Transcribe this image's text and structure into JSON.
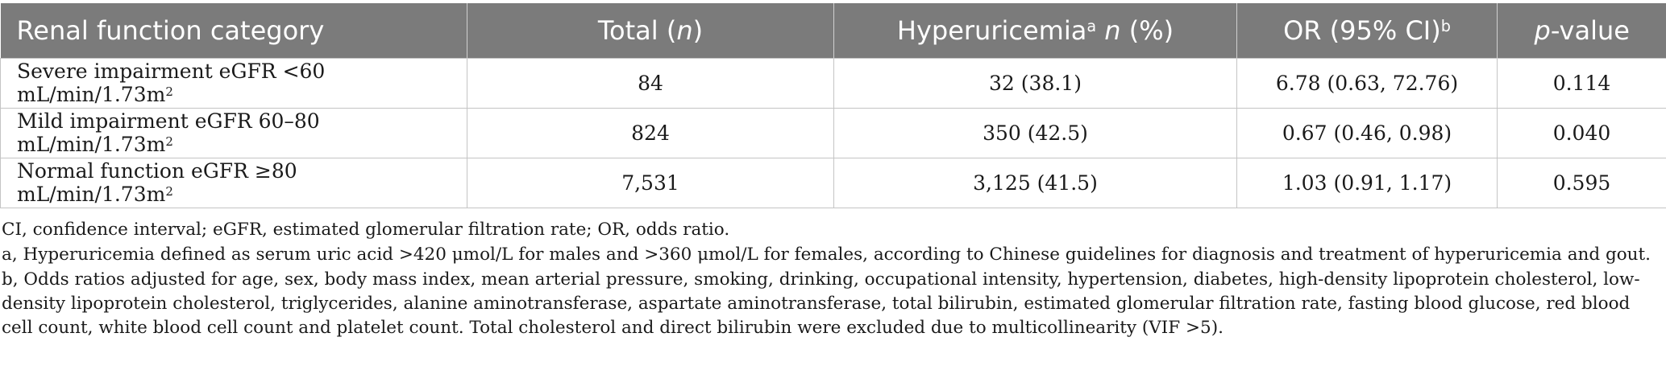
{
  "table": {
    "headers": {
      "category": "Renal function category",
      "total": "Total (",
      "total_n": "n",
      "total_end": ")",
      "hyper": "Hyperuricemia",
      "hyper_sup": "a",
      "hyper_n": "n",
      "hyper_pct": " (%)",
      "or": "OR (95% CI)",
      "or_sup": "b",
      "p_italic": "p",
      "p_rest": "-value"
    },
    "rows": [
      {
        "category": "Severe impairment eGFR <60 mL/min/1.73m",
        "sup": "2",
        "total": "84",
        "hyper": "32 (38.1)",
        "or": "6.78 (0.63, 72.76)",
        "p": "0.114"
      },
      {
        "category": "Mild impairment eGFR 60–80 mL/min/1.73m",
        "sup": "2",
        "total": "824",
        "hyper": "350 (42.5)",
        "or": "0.67 (0.46, 0.98)",
        "p": "0.040"
      },
      {
        "category": "Normal function eGFR ≥80 mL/min/1.73m",
        "sup": "2",
        "total": "7,531",
        "hyper": "3,125 (41.5)",
        "or": "1.03 (0.91, 1.17)",
        "p": "0.595"
      }
    ]
  },
  "footnotes": {
    "abbrev": "CI, confidence interval; eGFR, estimated glomerular filtration rate; OR, odds ratio.",
    "a": "a, Hyperuricemia defined as serum uric acid >420 μmol/L for males and >360 μmol/L for females, according to Chinese guidelines for diagnosis and treatment of hyperuricemia and gout.",
    "b": "b, Odds ratios adjusted for age, sex, body mass index, mean arterial pressure, smoking, drinking, occupational intensity, hypertension, diabetes, high-density lipoprotein cholesterol, low-density lipoprotein cholesterol, triglycerides, alanine aminotransferase, aspartate aminotransferase, total bilirubin, estimated glomerular filtration rate, fasting blood glucose, red blood cell count, white blood cell count and platelet count. Total cholesterol and direct bilirubin were excluded due to multicollinearity (VIF >5)."
  }
}
